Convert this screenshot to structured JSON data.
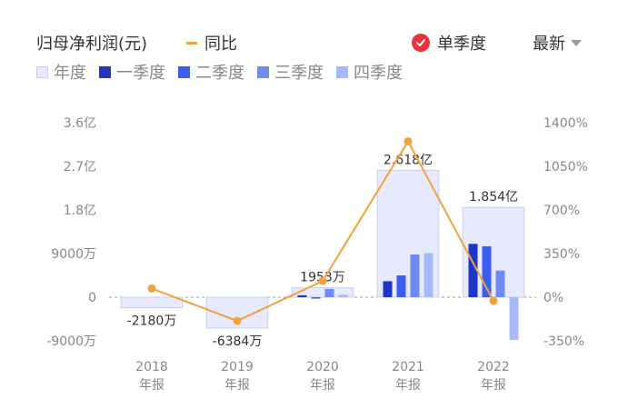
{
  "header": {
    "title": "归母净利润(元)",
    "yoy_label": "同比",
    "single_quarter_label": "单季度",
    "latest_label": "最新"
  },
  "legend": {
    "items": [
      {
        "label": "年度",
        "color": "#e6eafc"
      },
      {
        "label": "一季度",
        "color": "#1c36c9"
      },
      {
        "label": "二季度",
        "color": "#3b5ef0"
      },
      {
        "label": "三季度",
        "color": "#6d8af5"
      },
      {
        "label": "四季度",
        "color": "#a8b9fb"
      }
    ]
  },
  "colors": {
    "annual_fill": "#e6eafc",
    "annual_stroke": "#c7d0f6",
    "yoy_line": "#f2a23c",
    "accent_red": "#e8333a"
  },
  "chart_data": {
    "type": "bar",
    "categories": [
      "2018\n年报",
      "2019\n年报",
      "2020\n年报",
      "2021\n年报",
      "2022\n年报"
    ],
    "category_years": [
      "2018",
      "2019",
      "2020",
      "2021",
      "2022"
    ],
    "category_suffix": "年报",
    "left_axis": {
      "ticks": [
        3.6,
        2.7,
        1.8,
        0.9,
        0,
        -0.9
      ],
      "tick_labels": [
        "3.6亿",
        "2.7亿",
        "1.8亿",
        "9000万",
        "0",
        "-9000万"
      ],
      "range": [
        -0.9,
        3.6
      ],
      "unit": "亿"
    },
    "right_axis": {
      "ticks": [
        1400,
        1050,
        700,
        350,
        0,
        -350
      ],
      "tick_labels": [
        "1400%",
        "1050%",
        "700%",
        "350%",
        "0%",
        "-350%"
      ],
      "range": [
        -350,
        1400
      ],
      "unit": "%"
    },
    "series": [
      {
        "name": "年度",
        "values": [
          -0.218,
          -0.6384,
          0.1953,
          2.618,
          1.854
        ]
      },
      {
        "name": "一季度",
        "values": [
          null,
          null,
          0.04,
          0.33,
          1.1
        ]
      },
      {
        "name": "二季度",
        "values": [
          null,
          null,
          -0.03,
          0.45,
          1.05
        ]
      },
      {
        "name": "三季度",
        "values": [
          null,
          null,
          0.17,
          0.88,
          0.55
        ]
      },
      {
        "name": "四季度",
        "values": [
          null,
          null,
          0.05,
          0.91,
          -0.88
        ]
      },
      {
        "name": "同比",
        "values": [
          70,
          -190,
          130,
          1250,
          -30
        ]
      }
    ],
    "annual_labels": [
      "-2180万",
      "-6384万",
      "1953万",
      "2.618亿",
      "1.854亿"
    ],
    "grid": false,
    "zero_line": "dashed"
  }
}
